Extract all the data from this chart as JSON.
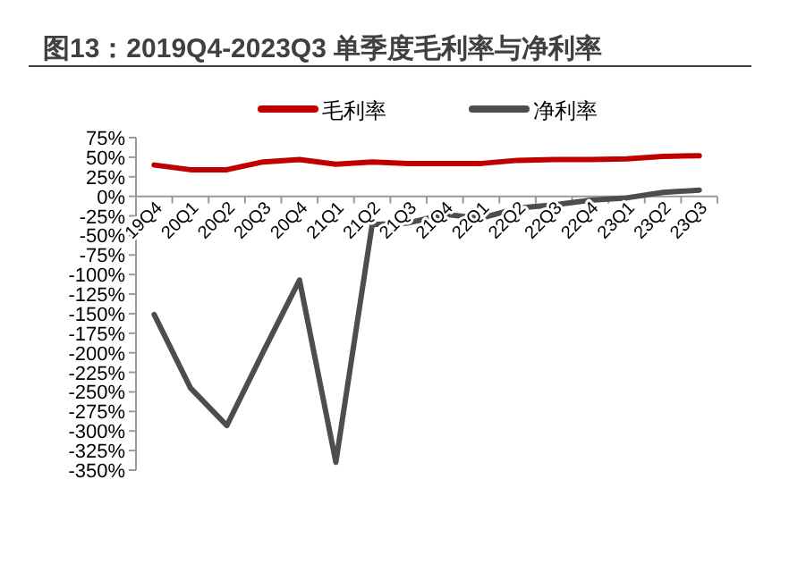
{
  "chart_data": {
    "type": "line",
    "title": "图13：2019Q4-2023Q3 单季度毛利率与净利率",
    "categories": [
      "19Q4",
      "20Q1",
      "20Q2",
      "20Q3",
      "20Q4",
      "21Q1",
      "21Q2",
      "21Q3",
      "21Q4",
      "22Q1",
      "22Q2",
      "22Q3",
      "22Q4",
      "23Q1",
      "23Q2",
      "23Q3"
    ],
    "series": [
      {
        "name": "毛利率",
        "color": "#c00000",
        "values": [
          40,
          34,
          34,
          44,
          47,
          41,
          44,
          42,
          42,
          42,
          46,
          47,
          47,
          48,
          51,
          52
        ]
      },
      {
        "name": "净利率",
        "color": "#4d4d4d",
        "values": [
          -151,
          -245,
          -293,
          -199,
          -107,
          -340,
          -36,
          -34,
          -23,
          -28,
          -15,
          -11,
          -5,
          -2,
          5,
          8
        ]
      }
    ],
    "ylim": [
      -350,
      75
    ],
    "yticks": [
      {
        "value": 75,
        "label": "75%"
      },
      {
        "value": 50,
        "label": "50%"
      },
      {
        "value": 25,
        "label": "25%"
      },
      {
        "value": 0,
        "label": "0%"
      },
      {
        "value": -25,
        "label": "-25%"
      },
      {
        "value": -50,
        "label": "-50%"
      },
      {
        "value": -75,
        "label": "-75%"
      },
      {
        "value": -100,
        "label": "-100%"
      },
      {
        "value": -125,
        "label": "-125%"
      },
      {
        "value": -150,
        "label": "-150%"
      },
      {
        "value": -175,
        "label": "-175%"
      },
      {
        "value": -200,
        "label": "-200%"
      },
      {
        "value": -225,
        "label": "-225%"
      },
      {
        "value": -250,
        "label": "-250%"
      },
      {
        "value": -275,
        "label": "-275%"
      },
      {
        "value": -300,
        "label": "-300%"
      },
      {
        "value": -325,
        "label": "-325%"
      },
      {
        "value": -350,
        "label": "-350%"
      }
    ],
    "legend": "top",
    "marker": "none",
    "line_style": "solid",
    "grid": false
  }
}
